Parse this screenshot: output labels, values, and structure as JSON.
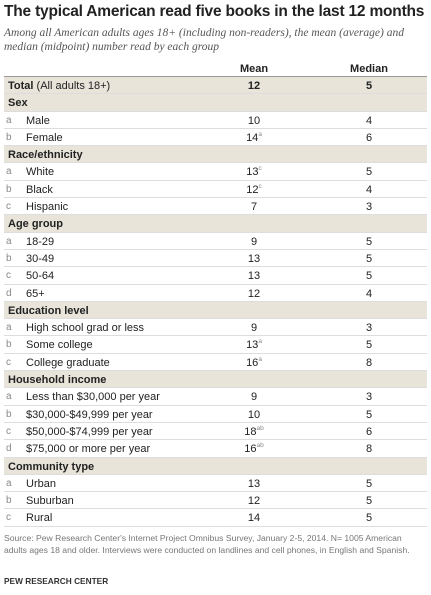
{
  "title": "The typical American read five books in the last 12 months",
  "subtitle": "Among all American adults ages 18+ (including non-readers), the mean (average) and median (midpoint) number read by each group",
  "columns": [
    "Mean",
    "Median"
  ],
  "total": {
    "label": "Total",
    "note": "(All adults 18+)",
    "mean": 12,
    "median": 5
  },
  "groups": [
    {
      "name": "Sex",
      "rows": [
        {
          "letter": "a",
          "label": "Male",
          "mean": 10,
          "median": 4
        },
        {
          "letter": "b",
          "label": "Female",
          "mean": 14,
          "mean_sup": "a",
          "median": 6
        }
      ]
    },
    {
      "name": "Race/ethnicity",
      "rows": [
        {
          "letter": "a",
          "label": "White",
          "mean": 13,
          "mean_sup": "c",
          "median": 5
        },
        {
          "letter": "b",
          "label": "Black",
          "mean": 12,
          "mean_sup": "c",
          "median": 4
        },
        {
          "letter": "c",
          "label": "Hispanic",
          "mean": 7,
          "median": 3
        }
      ]
    },
    {
      "name": "Age group",
      "rows": [
        {
          "letter": "a",
          "label": "18-29",
          "mean": 9,
          "median": 5
        },
        {
          "letter": "b",
          "label": "30-49",
          "mean": 13,
          "median": 5
        },
        {
          "letter": "c",
          "label": "50-64",
          "mean": 13,
          "median": 5
        },
        {
          "letter": "d",
          "label": "65+",
          "mean": 12,
          "median": 4
        }
      ]
    },
    {
      "name": "Education level",
      "rows": [
        {
          "letter": "a",
          "label": "High school grad or less",
          "mean": 9,
          "median": 3
        },
        {
          "letter": "b",
          "label": "Some college",
          "mean": 13,
          "mean_sup": "a",
          "median": 5
        },
        {
          "letter": "c",
          "label": "College graduate",
          "mean": 16,
          "mean_sup": "a",
          "median": 8
        }
      ]
    },
    {
      "name": "Household income",
      "rows": [
        {
          "letter": "a",
          "label": "Less than $30,000 per year",
          "mean": 9,
          "median": 3
        },
        {
          "letter": "b",
          "label": "$30,000-$49,999 per year",
          "mean": 10,
          "median": 5
        },
        {
          "letter": "c",
          "label": "$50,000-$74,999 per year",
          "mean": 18,
          "mean_sup": "ab",
          "median": 6
        },
        {
          "letter": "d",
          "label": "$75,000 or more per year",
          "mean": 16,
          "mean_sup": "ab",
          "median": 8
        }
      ]
    },
    {
      "name": "Community type",
      "rows": [
        {
          "letter": "a",
          "label": "Urban",
          "mean": 13,
          "median": 5
        },
        {
          "letter": "b",
          "label": "Suburban",
          "mean": 12,
          "median": 5
        },
        {
          "letter": "c",
          "label": "Rural",
          "mean": 14,
          "median": 5
        }
      ]
    }
  ],
  "source": "Source: Pew Research Center's Internet Project Omnibus Survey, January 2-5, 2014. N= 1005 American adults ages 18 and older. Interviews were conducted on landlines and cell phones, in English and Spanish.",
  "footer": "PEW RESEARCH CENTER"
}
